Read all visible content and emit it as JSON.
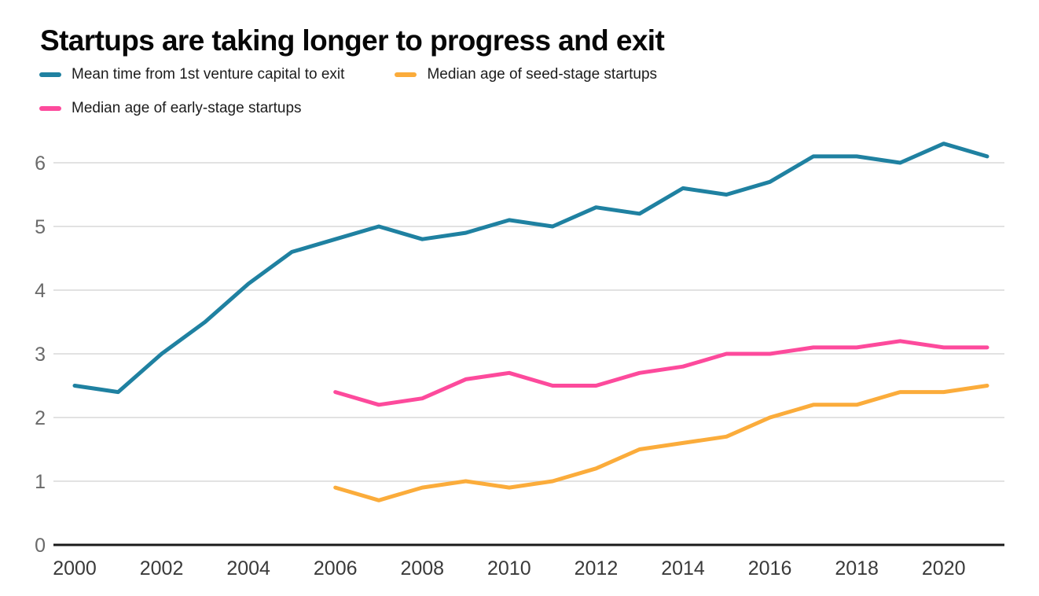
{
  "title": "Startups are taking longer to progress and exit",
  "legend": [
    {
      "label": "Mean time from 1st venture capital to exit",
      "color": "#1f81a1"
    },
    {
      "label": "Median age of seed-stage startups",
      "color": "#fbac3b"
    },
    {
      "label": "Median age of early-stage startups",
      "color": "#fd4a9c"
    }
  ],
  "colors": {
    "gridline": "#d9d9d9",
    "axis": "#1a1a1a",
    "ytick_text": "#6a6a6a",
    "xtick_text": "#3a3a3a",
    "background": "#ffffff"
  },
  "chart_data": {
    "type": "line",
    "title": "Startups are taking longer to progress and exit",
    "xlabel": "",
    "ylabel": "",
    "xlim": [
      2000,
      2021
    ],
    "ylim": [
      0,
      6.6
    ],
    "grid": "horizontal",
    "legend_position": "top-left",
    "xticks": [
      2000,
      2002,
      2004,
      2006,
      2008,
      2010,
      2012,
      2014,
      2016,
      2018,
      2020
    ],
    "yticks": [
      0,
      1,
      2,
      3,
      4,
      5,
      6
    ],
    "series": [
      {
        "name": "Mean time from 1st venture capital to exit",
        "color": "#1f81a1",
        "x": [
          2000,
          2001,
          2002,
          2003,
          2004,
          2005,
          2006,
          2007,
          2008,
          2009,
          2010,
          2011,
          2012,
          2013,
          2014,
          2015,
          2016,
          2017,
          2018,
          2019,
          2020,
          2021
        ],
        "values": [
          2.5,
          2.4,
          3.0,
          3.5,
          4.1,
          4.6,
          4.8,
          5.0,
          4.8,
          4.9,
          5.1,
          5.0,
          5.3,
          5.2,
          5.6,
          5.5,
          5.7,
          6.1,
          6.1,
          6.0,
          6.3,
          6.1
        ]
      },
      {
        "name": "Median age of seed-stage startups",
        "color": "#fbac3b",
        "x": [
          2006,
          2007,
          2008,
          2009,
          2010,
          2011,
          2012,
          2013,
          2014,
          2015,
          2016,
          2017,
          2018,
          2019,
          2020,
          2021
        ],
        "values": [
          0.9,
          0.7,
          0.9,
          1.0,
          0.9,
          1.0,
          1.2,
          1.5,
          1.6,
          1.7,
          2.0,
          2.2,
          2.2,
          2.4,
          2.4,
          2.5
        ]
      },
      {
        "name": "Median age of early-stage startups",
        "color": "#fd4a9c",
        "x": [
          2006,
          2007,
          2008,
          2009,
          2010,
          2011,
          2012,
          2013,
          2014,
          2015,
          2016,
          2017,
          2018,
          2019,
          2020,
          2021
        ],
        "values": [
          2.4,
          2.2,
          2.3,
          2.6,
          2.7,
          2.5,
          2.5,
          2.7,
          2.8,
          3.0,
          3.0,
          3.1,
          3.1,
          3.2,
          3.1,
          3.1
        ]
      }
    ]
  }
}
